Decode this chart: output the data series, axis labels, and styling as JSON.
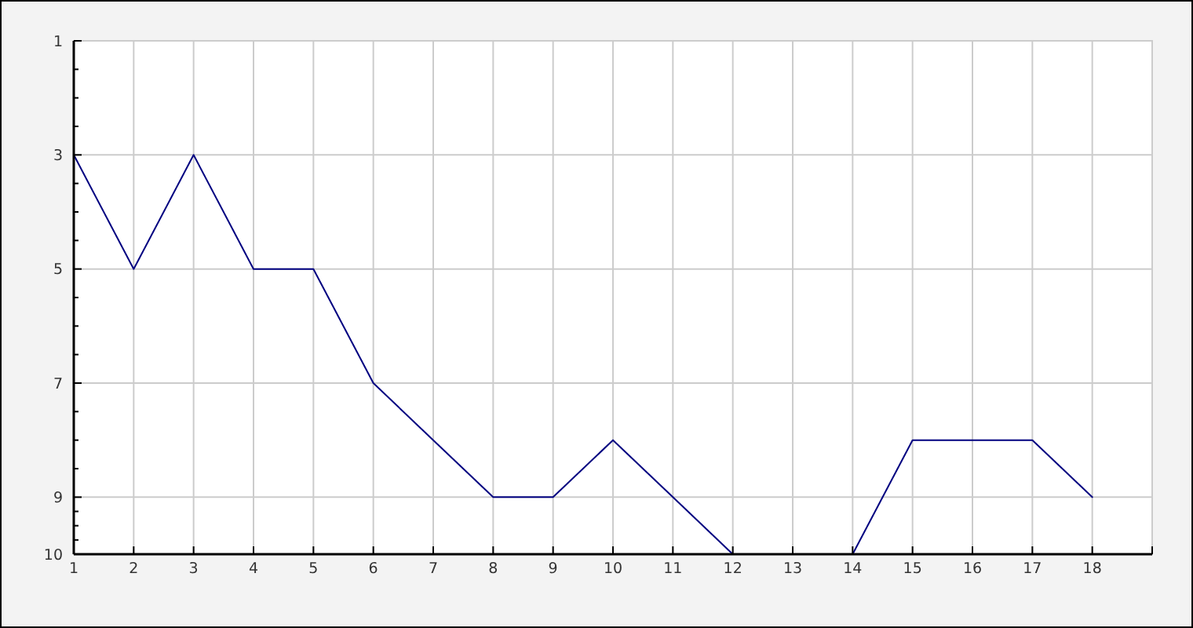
{
  "chart_data": {
    "type": "line",
    "x": [
      1,
      2,
      3,
      4,
      5,
      6,
      7,
      8,
      9,
      10,
      11,
      12,
      13,
      14,
      15,
      16,
      17,
      18
    ],
    "values": [
      3,
      5,
      3,
      5,
      5,
      7,
      8,
      9,
      9,
      8,
      9,
      10,
      null,
      10,
      8,
      8,
      8,
      9
    ],
    "color": "#000080",
    "xlim": [
      1,
      19
    ],
    "xticks": [
      1,
      2,
      3,
      4,
      5,
      6,
      7,
      8,
      9,
      10,
      11,
      12,
      13,
      14,
      15,
      16,
      17,
      18
    ],
    "ylim": [
      10,
      1
    ],
    "yticks": [
      1,
      {
        "value": 1.5,
        "label": null
      },
      {
        "value": 2,
        "label": null
      },
      {
        "value": 2.5,
        "label": null
      },
      3,
      {
        "value": 3.5,
        "label": null
      },
      {
        "value": 4,
        "label": null
      },
      {
        "value": 4.5,
        "label": null
      },
      5,
      {
        "value": 5.5,
        "label": null
      },
      {
        "value": 6,
        "label": null
      },
      {
        "value": 6.5,
        "label": null
      },
      7,
      {
        "value": 7.5,
        "label": null
      },
      {
        "value": 8,
        "label": null
      },
      {
        "value": 8.5,
        "label": null
      },
      9,
      {
        "value": 9.25,
        "label": null
      },
      {
        "value": 9.5,
        "label": null
      },
      {
        "value": 9.75,
        "label": null
      },
      10
    ],
    "grid": true
  }
}
